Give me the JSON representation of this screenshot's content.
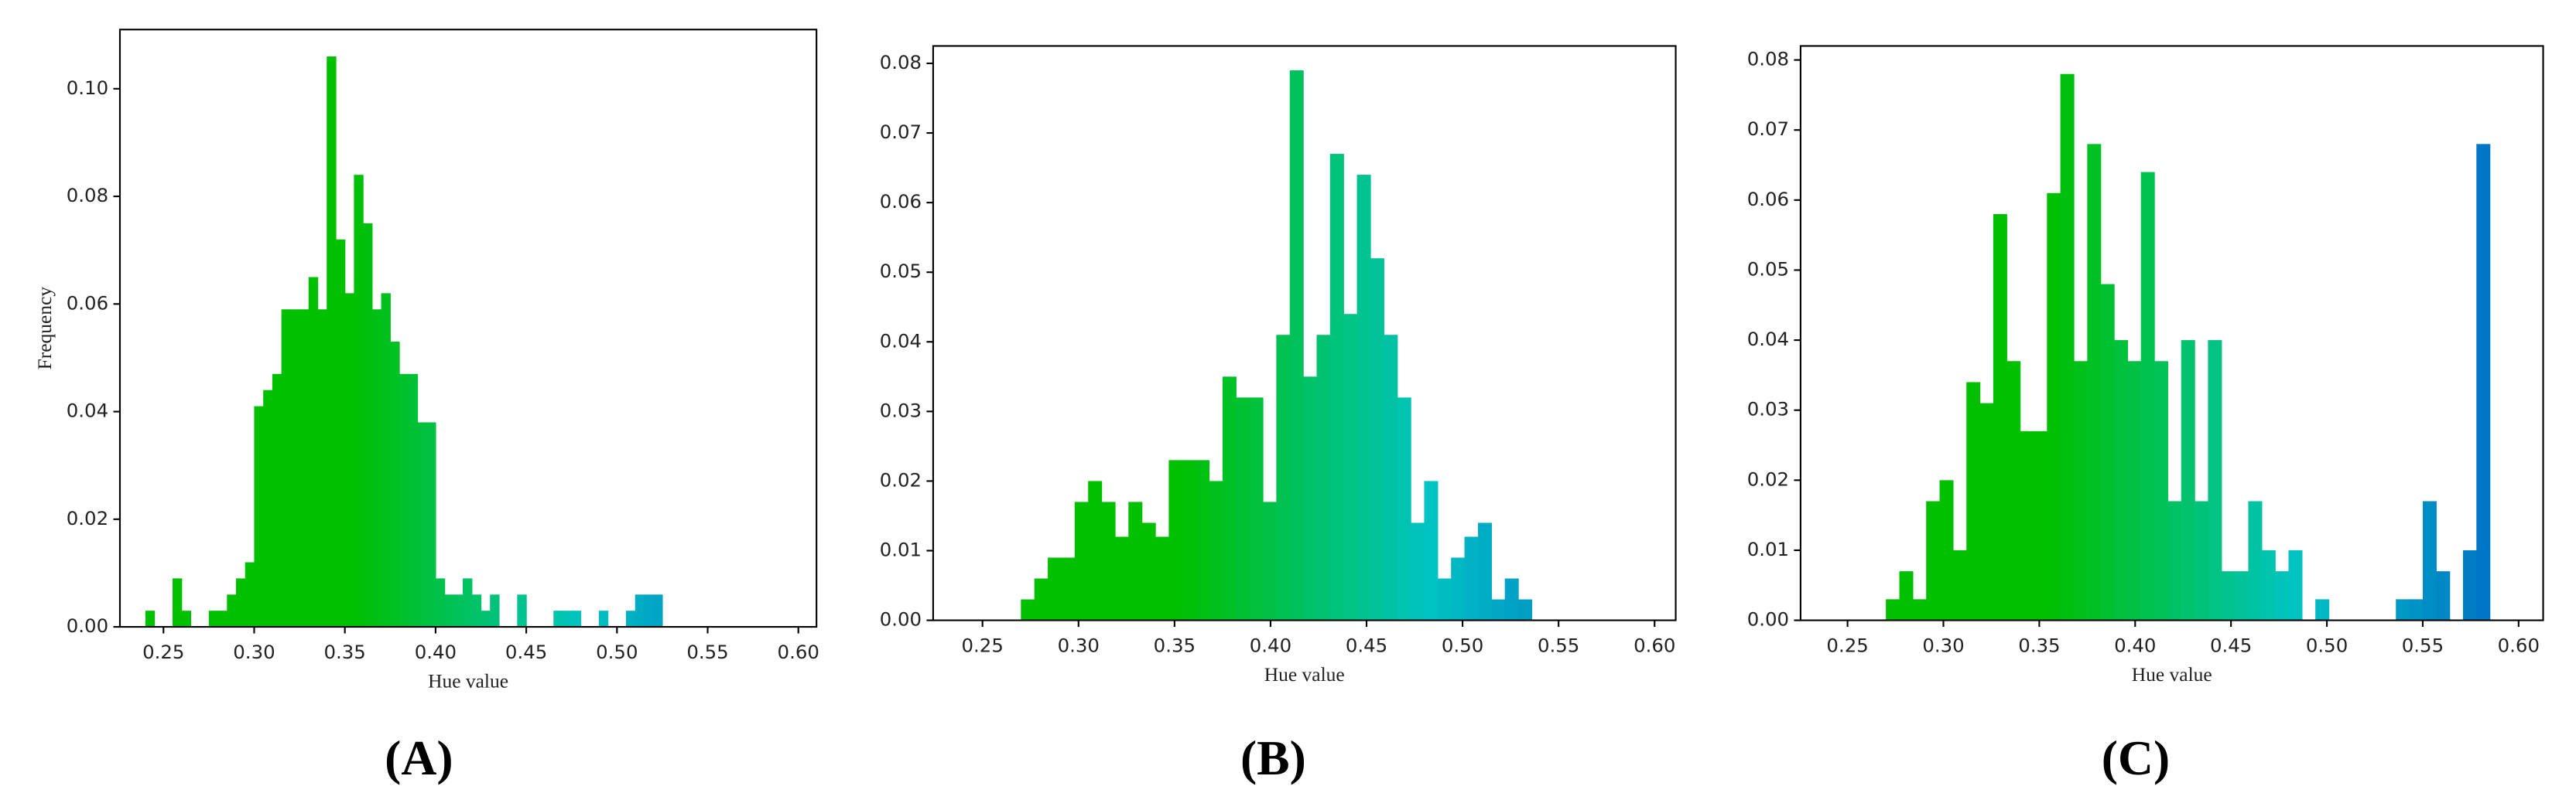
{
  "chart_data": [
    {
      "type": "histogram",
      "panel_label": "(A)",
      "xlabel": "Hue value",
      "ylabel": "Frequency",
      "bins": [
        0.24,
        0.245,
        0.25,
        0.255,
        0.26,
        0.265,
        0.27,
        0.275,
        0.28,
        0.285,
        0.29,
        0.295,
        0.3,
        0.305,
        0.31,
        0.315,
        0.32,
        0.325,
        0.33,
        0.335,
        0.34,
        0.345,
        0.35,
        0.355,
        0.36,
        0.365,
        0.37,
        0.375,
        0.38,
        0.385,
        0.39,
        0.395,
        0.4,
        0.405,
        0.41,
        0.415,
        0.42,
        0.425,
        0.43,
        0.435,
        0.44,
        0.445,
        0.45,
        0.455,
        0.46,
        0.465,
        0.47,
        0.475,
        0.48,
        0.485,
        0.49,
        0.495,
        0.5,
        0.505,
        0.51,
        0.515,
        0.52,
        0.525
      ],
      "values": [
        0.003,
        0,
        0,
        0.009,
        0.003,
        0,
        0,
        0.003,
        0.003,
        0.006,
        0.009,
        0.012,
        0.041,
        0.044,
        0.047,
        0.059,
        0.059,
        0.059,
        0.065,
        0.059,
        0.106,
        0.072,
        0.062,
        0.084,
        0.075,
        0.059,
        0.062,
        0.053,
        0.047,
        0.047,
        0.038,
        0.038,
        0.009,
        0.006,
        0.006,
        0.009,
        0.006,
        0.003,
        0.006,
        0,
        0,
        0.006,
        0,
        0,
        0,
        0.003,
        0.003,
        0.003,
        0,
        0,
        0.003,
        0,
        0,
        0.003,
        0.006,
        0.006,
        0.006
      ],
      "colormap": [
        "#00c000",
        "#00c000",
        "#00c4c4",
        "#005fc6"
      ],
      "xlim": [
        0.226,
        0.61
      ],
      "ylim": [
        0,
        0.111
      ],
      "xticks": [
        0.25,
        {
          "value": 0.3,
          "label": "0.30"
        },
        0.35,
        {
          "value": 0.4,
          "label": "0.40"
        },
        0.45,
        {
          "value": 0.5,
          "label": "0.50"
        },
        0.55,
        {
          "value": 0.6,
          "label": "0.60"
        }
      ],
      "yticks": [
        {
          "value": 0,
          "label": "0.00"
        },
        0.02,
        0.04,
        0.06,
        0.08,
        {
          "value": 0.1,
          "label": "0.10"
        }
      ]
    },
    {
      "type": "histogram",
      "panel_label": "(B)",
      "xlabel": "Hue value",
      "bins": [
        0.27,
        0.277,
        0.284,
        0.291,
        0.298,
        0.305,
        0.312,
        0.319,
        0.326,
        0.333,
        0.34,
        0.347,
        0.354,
        0.361,
        0.368,
        0.375,
        0.382,
        0.389,
        0.396,
        0.403,
        0.41,
        0.417,
        0.424,
        0.431,
        0.438,
        0.445,
        0.452,
        0.459,
        0.466,
        0.473,
        0.48,
        0.487,
        0.494,
        0.501,
        0.508,
        0.515,
        0.522,
        0.529,
        0.536
      ],
      "values": [
        0.003,
        0.006,
        0.009,
        0.009,
        0.017,
        0.02,
        0.017,
        0.012,
        0.017,
        0.014,
        0.012,
        0.023,
        0.023,
        0.023,
        0.02,
        0.035,
        0.032,
        0.032,
        0.017,
        0.041,
        0.079,
        0.035,
        0.041,
        0.067,
        0.044,
        0.064,
        0.052,
        0.041,
        0.032,
        0.014,
        0.02,
        0.006,
        0.009,
        0.012,
        0.014,
        0.003,
        0.006,
        0.003
      ],
      "colormap": [
        "#00c000",
        "#00c000",
        "#00c4c4",
        "#005fc6"
      ],
      "xlim": [
        0.2243,
        0.611
      ],
      "ylim": [
        0,
        0.0825
      ],
      "xticks": [
        0.25,
        {
          "value": 0.3,
          "label": "0.30"
        },
        0.35,
        {
          "value": 0.4,
          "label": "0.40"
        },
        0.45,
        {
          "value": 0.5,
          "label": "0.50"
        },
        0.55,
        {
          "value": 0.6,
          "label": "0.60"
        }
      ],
      "yticks": [
        {
          "value": 0,
          "label": "0.00"
        },
        0.01,
        0.02,
        0.03,
        0.04,
        0.05,
        0.06,
        0.07,
        0.08
      ]
    },
    {
      "type": "histogram",
      "panel_label": "(C)",
      "xlabel": "Hue value",
      "bins": [
        0.27,
        0.277,
        0.284,
        0.291,
        0.298,
        0.305,
        0.312,
        0.319,
        0.326,
        0.333,
        0.34,
        0.347,
        0.354,
        0.361,
        0.368,
        0.375,
        0.382,
        0.389,
        0.396,
        0.403,
        0.41,
        0.417,
        0.424,
        0.431,
        0.438,
        0.445,
        0.452,
        0.459,
        0.466,
        0.473,
        0.48,
        0.487,
        0.494,
        0.501,
        0.508,
        0.515,
        0.522,
        0.529,
        0.536,
        0.543,
        0.55,
        0.557,
        0.564,
        0.571,
        0.578,
        0.585
      ],
      "values": [
        0.003,
        0.007,
        0.003,
        0.017,
        0.02,
        0.01,
        0.034,
        0.031,
        0.058,
        0.037,
        0.027,
        0.027,
        0.061,
        0.078,
        0.037,
        0.068,
        0.048,
        0.04,
        0.037,
        0.064,
        0.037,
        0.017,
        0.04,
        0.017,
        0.04,
        0.007,
        0.007,
        0.017,
        0.01,
        0.007,
        0.01,
        0,
        0.003,
        0,
        0,
        0,
        0,
        0,
        0.003,
        0.003,
        0.017,
        0.007,
        0,
        0.01,
        0.068
      ],
      "colormap": [
        "#00c000",
        "#00c000",
        "#00c4c4",
        "#005fc6"
      ],
      "xlim": [
        0.2255,
        0.6128
      ],
      "ylim": [
        0,
        0.082
      ],
      "xticks": [
        0.25,
        {
          "value": 0.3,
          "label": "0.30"
        },
        0.35,
        {
          "value": 0.4,
          "label": "0.40"
        },
        0.45,
        {
          "value": 0.5,
          "label": "0.50"
        },
        0.55,
        {
          "value": 0.6,
          "label": "0.60"
        }
      ],
      "yticks": [
        {
          "value": 0,
          "label": "0.00"
        },
        0.01,
        0.02,
        0.03,
        0.04,
        0.05,
        0.06,
        0.07,
        0.08
      ]
    }
  ]
}
